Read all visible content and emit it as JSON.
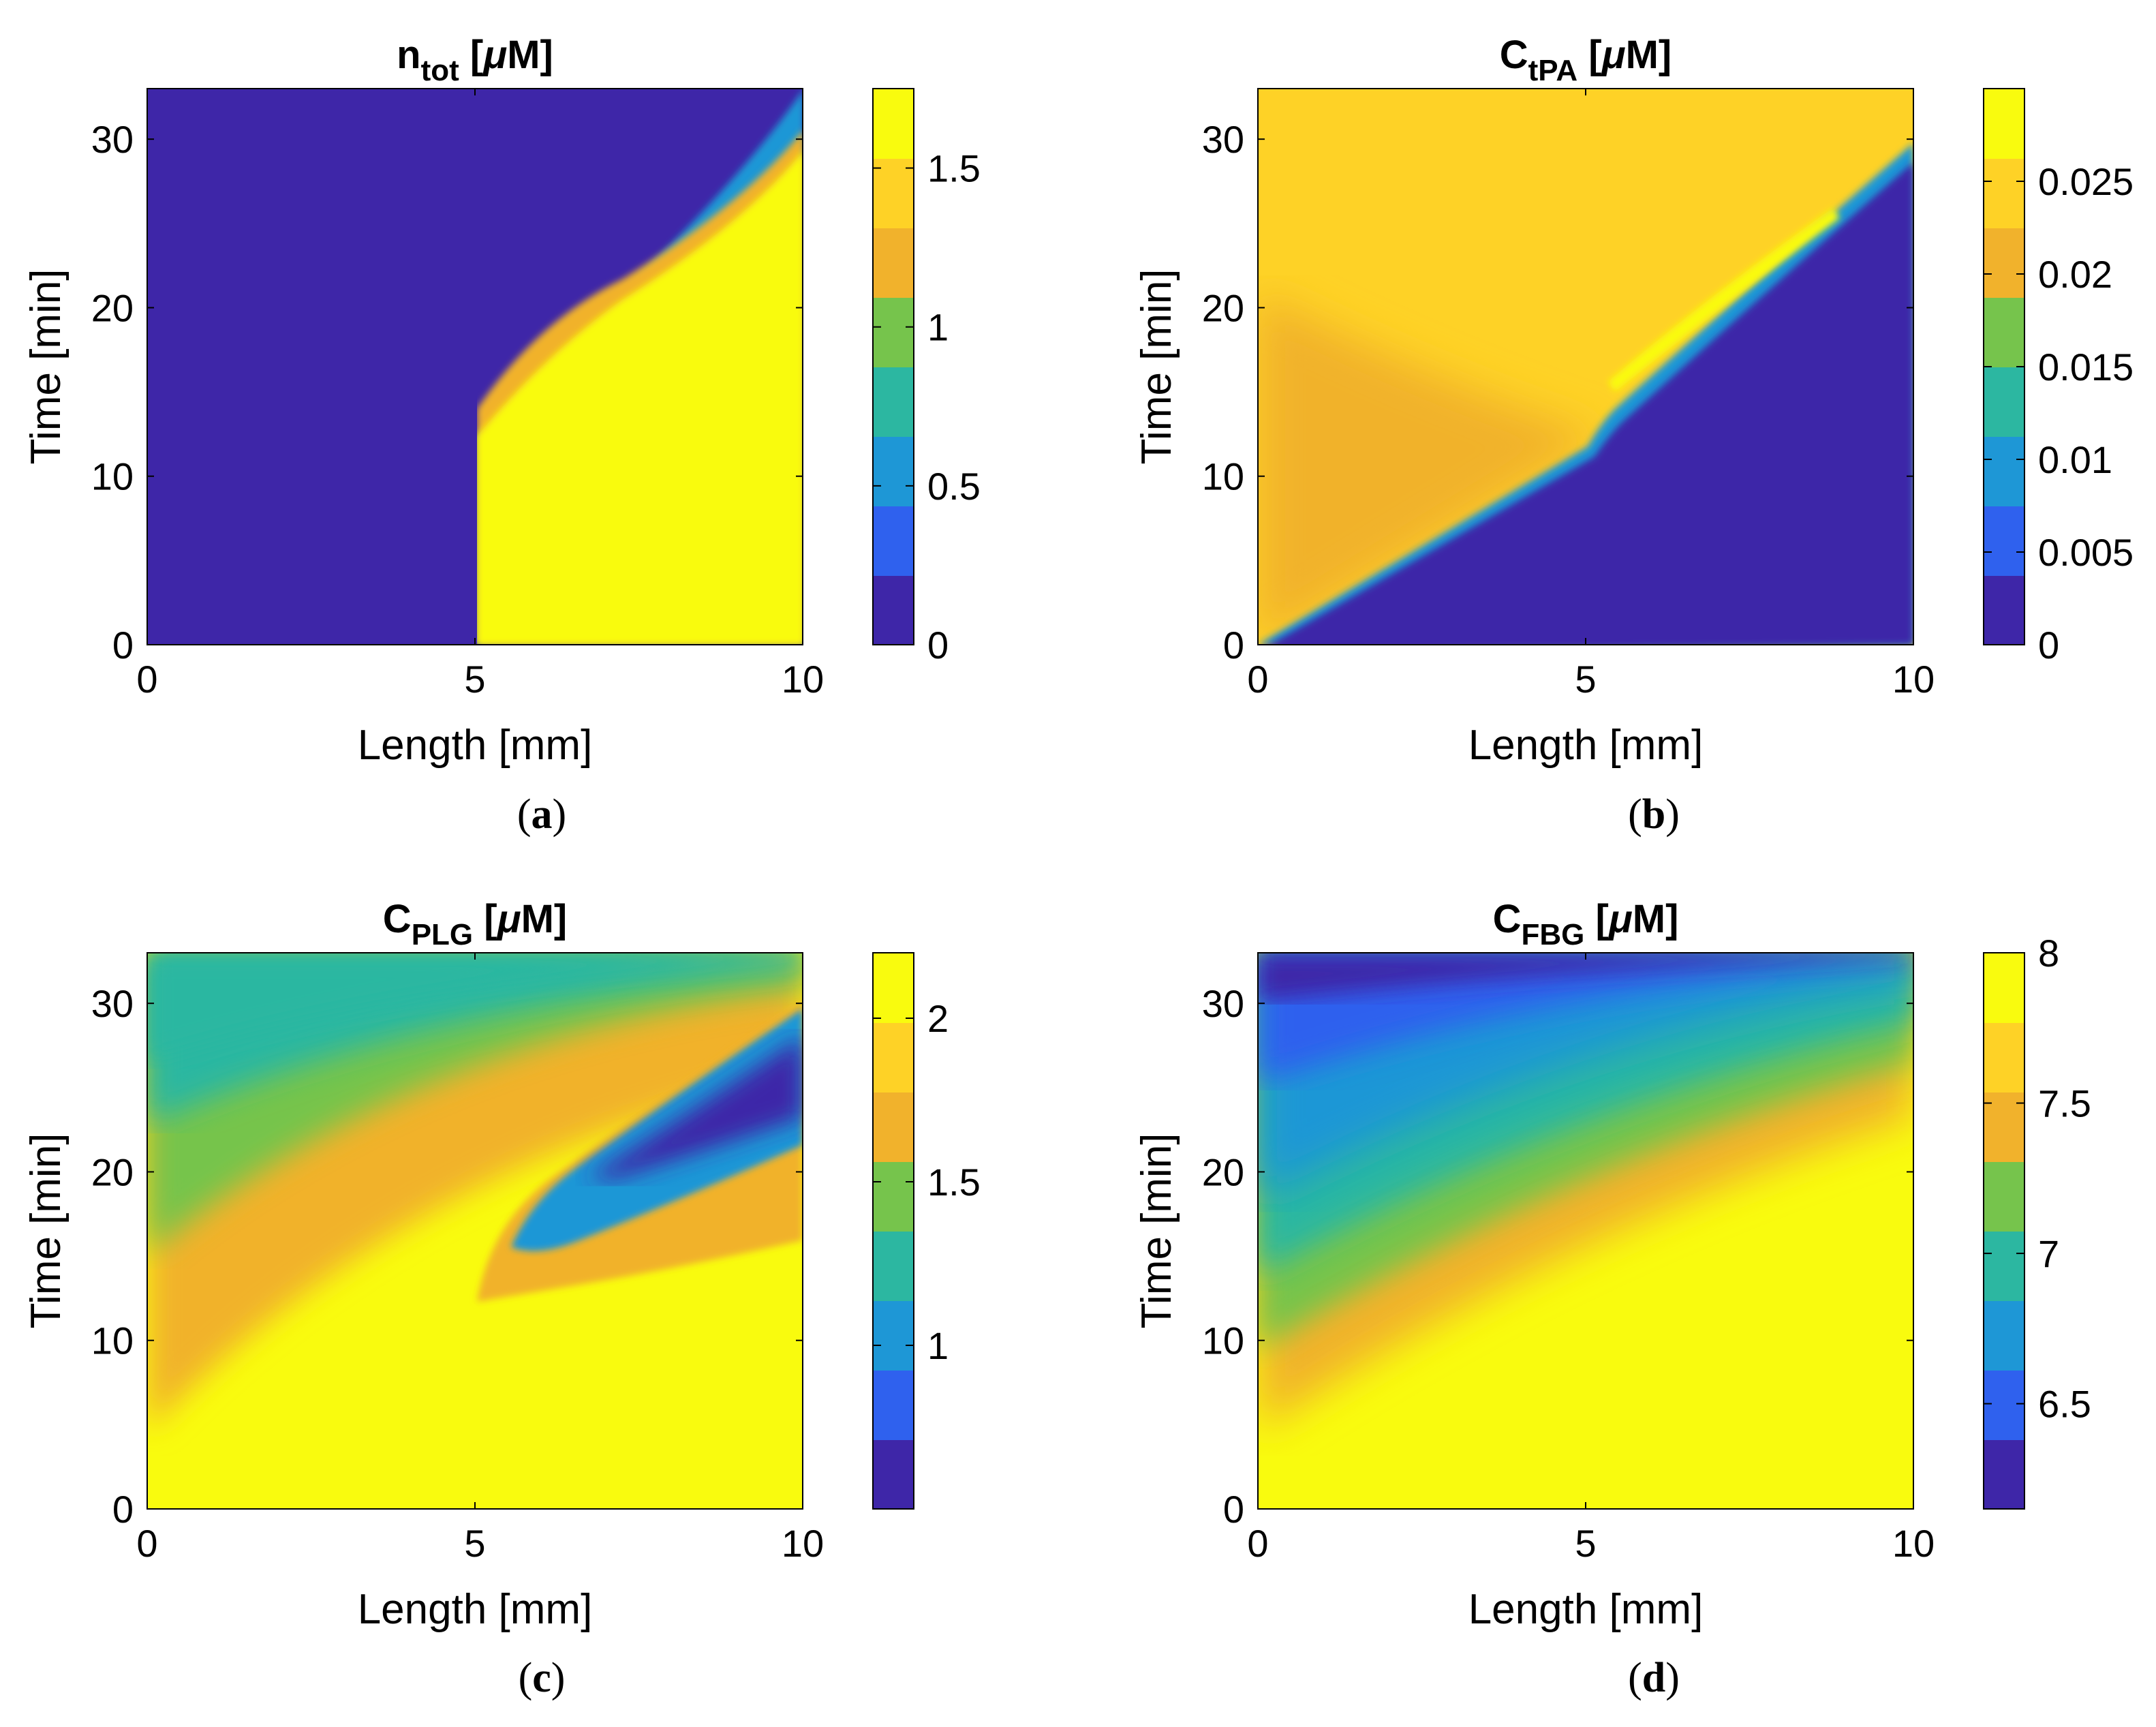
{
  "chart_data": [
    {
      "type": "heatmap",
      "panel_label": "(a)",
      "title_main": "n",
      "title_sub": "tot",
      "title_unit_pre": " [",
      "title_unit_mu": "μ",
      "title_unit_post": "M]",
      "xlabel": "Length [mm]",
      "ylabel": "Time [min]",
      "xlim": [
        0,
        10
      ],
      "ylim": [
        0,
        33
      ],
      "xticks": [
        "0",
        "5",
        "10"
      ],
      "yticks": [
        "0",
        "10",
        "20",
        "30"
      ],
      "xtick_values": [
        0,
        5,
        10
      ],
      "ytick_values": [
        0,
        10,
        20,
        30
      ],
      "colorbar_range": [
        0,
        1.75
      ],
      "colorbar_ticks": [
        "0",
        "0.5",
        "1",
        "1.5"
      ],
      "colorbar_tick_values": [
        0,
        0.5,
        1,
        1.5
      ],
      "colormap": [
        "#3e26a8",
        "#2f61ee",
        "#1e97d6",
        "#2cb7a1",
        "#76c44c",
        "#f1b22c",
        "#fed226",
        "#f9fb0e"
      ]
    },
    {
      "type": "heatmap",
      "panel_label": "(b)",
      "title_main": "C",
      "title_sub": "tPA",
      "title_unit_pre": " [",
      "title_unit_mu": "μ",
      "title_unit_post": "M]",
      "xlabel": "Length [mm]",
      "ylabel": "Time [min]",
      "xlim": [
        0,
        10
      ],
      "ylim": [
        0,
        33
      ],
      "xticks": [
        "0",
        "5",
        "10"
      ],
      "yticks": [
        "0",
        "10",
        "20",
        "30"
      ],
      "xtick_values": [
        0,
        5,
        10
      ],
      "ytick_values": [
        0,
        10,
        20,
        30
      ],
      "colorbar_range": [
        0,
        0.03
      ],
      "colorbar_ticks": [
        "0",
        "0.005",
        "0.01",
        "0.015",
        "0.02",
        "0.025"
      ],
      "colorbar_tick_values": [
        0,
        0.005,
        0.01,
        0.015,
        0.02,
        0.025
      ],
      "colormap": [
        "#3e26a8",
        "#2f61ee",
        "#1e97d6",
        "#2cb7a1",
        "#76c44c",
        "#f1b22c",
        "#fed226",
        "#f9fb0e"
      ]
    },
    {
      "type": "heatmap",
      "panel_label": "(c)",
      "title_main": "C",
      "title_sub": "PLG",
      "title_unit_pre": " [",
      "title_unit_mu": "μ",
      "title_unit_post": "M]",
      "xlabel": "Length [mm]",
      "ylabel": "Time [min]",
      "xlim": [
        0,
        10
      ],
      "ylim": [
        0,
        33
      ],
      "xticks": [
        "0",
        "5",
        "10"
      ],
      "yticks": [
        "0",
        "10",
        "20",
        "30"
      ],
      "xtick_values": [
        0,
        5,
        10
      ],
      "ytick_values": [
        0,
        10,
        20,
        30
      ],
      "colorbar_range": [
        0.5,
        2.2
      ],
      "colorbar_ticks": [
        "1",
        "1.5",
        "2"
      ],
      "colorbar_tick_values": [
        1,
        1.5,
        2
      ],
      "colormap": [
        "#3e26a8",
        "#2f61ee",
        "#1e97d6",
        "#2cb7a1",
        "#76c44c",
        "#f1b22c",
        "#fed226",
        "#f9fb0e"
      ]
    },
    {
      "type": "heatmap",
      "panel_label": "(d)",
      "title_main": "C",
      "title_sub": "FBG",
      "title_unit_pre": " [",
      "title_unit_mu": "μ",
      "title_unit_post": "M]",
      "xlabel": "Length [mm]",
      "ylabel": "Time [min]",
      "xlim": [
        0,
        10
      ],
      "ylim": [
        0,
        33
      ],
      "xticks": [
        "0",
        "5",
        "10"
      ],
      "yticks": [
        "0",
        "10",
        "20",
        "30"
      ],
      "xtick_values": [
        0,
        5,
        10
      ],
      "ytick_values": [
        0,
        10,
        20,
        30
      ],
      "colorbar_range": [
        6.15,
        8
      ],
      "colorbar_ticks": [
        "6.5",
        "7",
        "7.5",
        "8"
      ],
      "colorbar_tick_values": [
        6.5,
        7,
        7.5,
        8
      ],
      "colormap": [
        "#3e26a8",
        "#2f61ee",
        "#1e97d6",
        "#2cb7a1",
        "#76c44c",
        "#f1b22c",
        "#fed226",
        "#f9fb0e"
      ]
    }
  ]
}
